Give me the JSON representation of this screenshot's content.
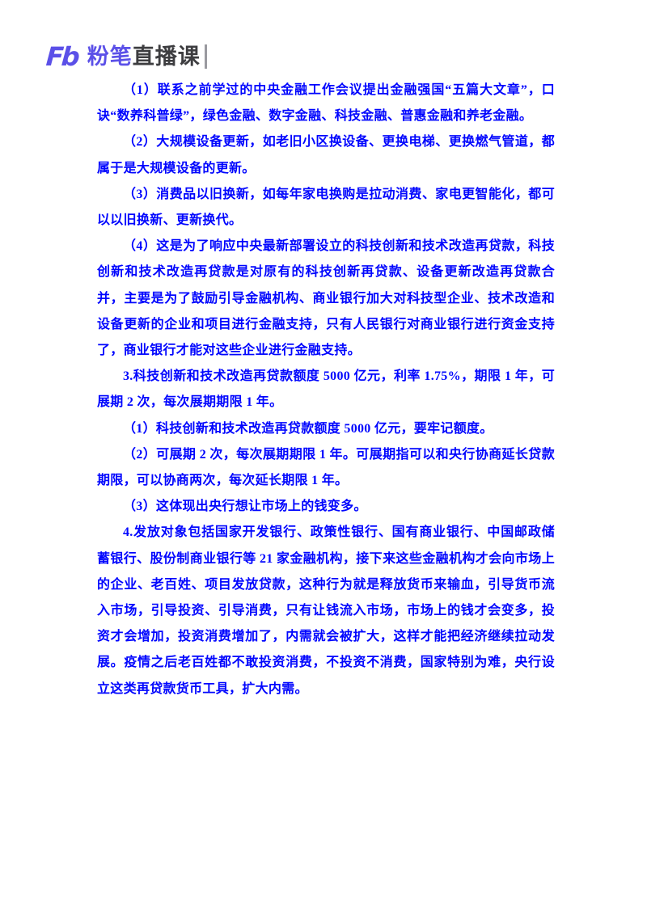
{
  "page": {
    "background": "#ffffff"
  },
  "logo": {
    "mark": "Fb",
    "brand_primary": "粉笔",
    "brand_secondary": "直播课",
    "primary_color": "#5B50E8",
    "secondary_color": "#3D3D40",
    "divider_color": "#9a9aa0"
  },
  "document": {
    "text_color": "#0005FE",
    "paragraphs": [
      {
        "text": "（1）联系之前学过的中央金融工作会议提出金融强国“五篇大文章”，口诀“数养科普绿”，绿色金融、数字金融、科技金融、普惠金融和养老金融。"
      },
      {
        "text": "（2）大规模设备更新，如老旧小区换设备、更换电梯、更换燃气管道，都属于是大规模设备的更新。"
      },
      {
        "text": "（3）消费品以旧换新，如每年家电换购是拉动消费、家电更智能化，都可以以旧换新、更新换代。"
      },
      {
        "text": "（4）这是为了响应中央最新部署设立的科技创新和技术改造再贷款，科技创新和技术改造再贷款是对原有的科技创新再贷款、设备更新改造再贷款合并，主要是为了鼓励引导金融机构、商业银行加大对科技型企业、技术改造和设备更新的企业和项目进行金融支持，只有人民银行对商业银行进行资金支持了，商业银行才能对这些企业进行金融支持。"
      },
      {
        "text": "3.科技创新和技术改造再贷款额度 5000 亿元，利率 1.75%，期限 1 年，可展期 2 次，每次展期期限 1 年。"
      },
      {
        "text": "（1）科技创新和技术改造再贷款额度 5000 亿元，要牢记额度。"
      },
      {
        "text": "（2）可展期 2 次，每次展期期限 1 年。可展期指可以和央行协商延长贷款期限，可以协商两次，每次延长期限 1 年。"
      },
      {
        "text": "（3）这体现出央行想让市场上的钱变多。"
      },
      {
        "text": "4.发放对象包括国家开发银行、政策性银行、国有商业银行、中国邮政储蓄银行、股份制商业银行等 21 家金融机构，接下来这些金融机构才会向市场上的企业、老百姓、项目发放贷款，这种行为就是释放货币来输血，引导货币流入市场，引导投资、引导消费，只有让钱流入市场，市场上的钱才会变多，投资才会增加，投资消费增加了，内需就会被扩大，这样才能把经济继续拉动发展。疫情之后老百姓都不敢投资消费，不投资不消费，国家特别为难，央行设立这类再贷款货币工具，扩大内需。"
      }
    ]
  }
}
